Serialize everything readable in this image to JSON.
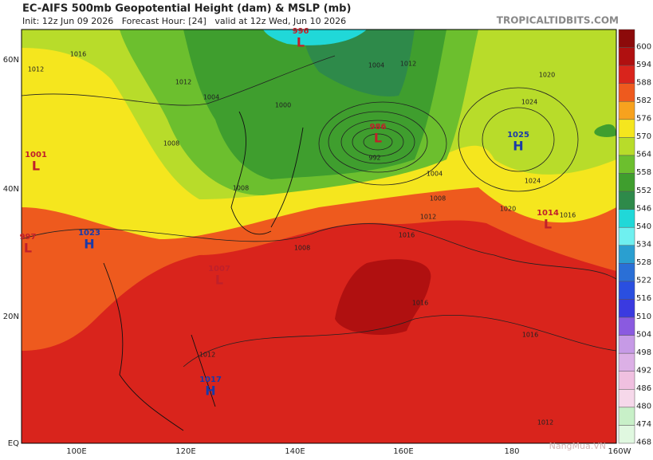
{
  "header": {
    "title": "EC-AIFS 500mb Geopotential Height (dam) & MSLP (mb)",
    "subtitle": "Init: 12z Jun 09 2026   Forecast Hour: [24]   valid at 12z Wed, Jun 10 2026",
    "source": "TROPICALTIDBITS.COM"
  },
  "map": {
    "lat_labels": [
      "60N",
      "40N",
      "20N",
      "EQ"
    ],
    "lon_labels": [
      "100E",
      "120E",
      "140E",
      "160E",
      "180",
      "160W"
    ],
    "pressure_centers": [
      {
        "letter": "L",
        "value": 996
      },
      {
        "letter": "L",
        "value": 986
      },
      {
        "letter": "H",
        "value": 1025
      },
      {
        "letter": "L",
        "value": 1014
      },
      {
        "letter": "H",
        "value": 1023
      },
      {
        "letter": "L",
        "value": 1007
      },
      {
        "letter": "H",
        "value": 1017
      },
      {
        "letter": "L",
        "value": 1001
      },
      {
        "letter": "L",
        "value": 997
      }
    ],
    "contour_labels": [
      1016,
      1012,
      1012,
      1004,
      1008,
      1000,
      1004,
      1012,
      1020,
      1024,
      1024,
      1020,
      1016,
      1012,
      1016,
      1008,
      1004,
      1008,
      1008,
      1016,
      1016,
      1012,
      1012,
      992
    ]
  },
  "colorbar": [
    {
      "value": 600,
      "color": "#8c0a0a"
    },
    {
      "value": 594,
      "color": "#b01010"
    },
    {
      "value": 588,
      "color": "#d9241c"
    },
    {
      "value": 582,
      "color": "#ee5a1e"
    },
    {
      "value": 576,
      "color": "#f7a21e"
    },
    {
      "value": 570,
      "color": "#f5e61e"
    },
    {
      "value": 564,
      "color": "#b8dc2a"
    },
    {
      "value": 558,
      "color": "#6cbf2e"
    },
    {
      "value": 552,
      "color": "#3f9e2e"
    },
    {
      "value": 546,
      "color": "#2e8a4a"
    },
    {
      "value": 540,
      "color": "#20d8d8"
    },
    {
      "value": 534,
      "color": "#6ff0f0"
    },
    {
      "value": 528,
      "color": "#2a9fd0"
    },
    {
      "value": 522,
      "color": "#2a6fd6"
    },
    {
      "value": 516,
      "color": "#2a4fe0"
    },
    {
      "value": 510,
      "color": "#3a3ae0"
    },
    {
      "value": 504,
      "color": "#8a5ae0"
    },
    {
      "value": 498,
      "color": "#c69ae6"
    },
    {
      "value": 492,
      "color": "#dcb0e6"
    },
    {
      "value": 486,
      "color": "#f0c0e0"
    },
    {
      "value": 480,
      "color": "#f6d8ea"
    },
    {
      "value": 474,
      "color": "#c8f0c8"
    },
    {
      "value": 468,
      "color": "#e0f8e0"
    }
  ],
  "watermark": "NangMua.VN"
}
